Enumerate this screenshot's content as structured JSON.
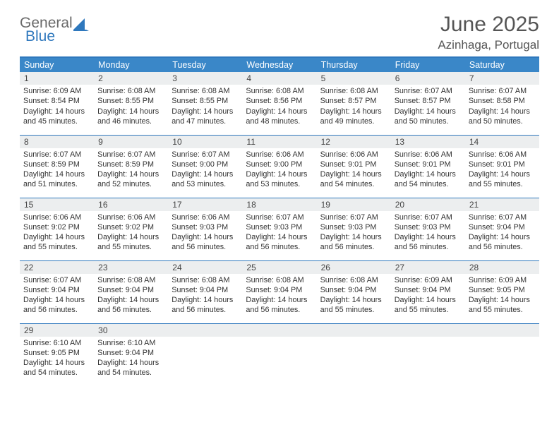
{
  "logo": {
    "text1": "General",
    "text2": "Blue",
    "sail_color": "#2f78bd",
    "text1_color": "#6a6a6a"
  },
  "title": {
    "month": "June 2025",
    "location": "Azinhaga, Portugal"
  },
  "colors": {
    "header_bg": "#3a87c8",
    "header_text": "#ffffff",
    "border": "#2f78bd",
    "daynum_bg": "#eceeef",
    "body_text": "#333333",
    "title_text": "#555555"
  },
  "weekdays": [
    "Sunday",
    "Monday",
    "Tuesday",
    "Wednesday",
    "Thursday",
    "Friday",
    "Saturday"
  ],
  "weeks": [
    [
      {
        "n": "1",
        "sr": "6:09 AM",
        "ss": "8:54 PM",
        "dl": "14 hours and 45 minutes."
      },
      {
        "n": "2",
        "sr": "6:08 AM",
        "ss": "8:55 PM",
        "dl": "14 hours and 46 minutes."
      },
      {
        "n": "3",
        "sr": "6:08 AM",
        "ss": "8:55 PM",
        "dl": "14 hours and 47 minutes."
      },
      {
        "n": "4",
        "sr": "6:08 AM",
        "ss": "8:56 PM",
        "dl": "14 hours and 48 minutes."
      },
      {
        "n": "5",
        "sr": "6:08 AM",
        "ss": "8:57 PM",
        "dl": "14 hours and 49 minutes."
      },
      {
        "n": "6",
        "sr": "6:07 AM",
        "ss": "8:57 PM",
        "dl": "14 hours and 50 minutes."
      },
      {
        "n": "7",
        "sr": "6:07 AM",
        "ss": "8:58 PM",
        "dl": "14 hours and 50 minutes."
      }
    ],
    [
      {
        "n": "8",
        "sr": "6:07 AM",
        "ss": "8:59 PM",
        "dl": "14 hours and 51 minutes."
      },
      {
        "n": "9",
        "sr": "6:07 AM",
        "ss": "8:59 PM",
        "dl": "14 hours and 52 minutes."
      },
      {
        "n": "10",
        "sr": "6:07 AM",
        "ss": "9:00 PM",
        "dl": "14 hours and 53 minutes."
      },
      {
        "n": "11",
        "sr": "6:06 AM",
        "ss": "9:00 PM",
        "dl": "14 hours and 53 minutes."
      },
      {
        "n": "12",
        "sr": "6:06 AM",
        "ss": "9:01 PM",
        "dl": "14 hours and 54 minutes."
      },
      {
        "n": "13",
        "sr": "6:06 AM",
        "ss": "9:01 PM",
        "dl": "14 hours and 54 minutes."
      },
      {
        "n": "14",
        "sr": "6:06 AM",
        "ss": "9:01 PM",
        "dl": "14 hours and 55 minutes."
      }
    ],
    [
      {
        "n": "15",
        "sr": "6:06 AM",
        "ss": "9:02 PM",
        "dl": "14 hours and 55 minutes."
      },
      {
        "n": "16",
        "sr": "6:06 AM",
        "ss": "9:02 PM",
        "dl": "14 hours and 55 minutes."
      },
      {
        "n": "17",
        "sr": "6:06 AM",
        "ss": "9:03 PM",
        "dl": "14 hours and 56 minutes."
      },
      {
        "n": "18",
        "sr": "6:07 AM",
        "ss": "9:03 PM",
        "dl": "14 hours and 56 minutes."
      },
      {
        "n": "19",
        "sr": "6:07 AM",
        "ss": "9:03 PM",
        "dl": "14 hours and 56 minutes."
      },
      {
        "n": "20",
        "sr": "6:07 AM",
        "ss": "9:03 PM",
        "dl": "14 hours and 56 minutes."
      },
      {
        "n": "21",
        "sr": "6:07 AM",
        "ss": "9:04 PM",
        "dl": "14 hours and 56 minutes."
      }
    ],
    [
      {
        "n": "22",
        "sr": "6:07 AM",
        "ss": "9:04 PM",
        "dl": "14 hours and 56 minutes."
      },
      {
        "n": "23",
        "sr": "6:08 AM",
        "ss": "9:04 PM",
        "dl": "14 hours and 56 minutes."
      },
      {
        "n": "24",
        "sr": "6:08 AM",
        "ss": "9:04 PM",
        "dl": "14 hours and 56 minutes."
      },
      {
        "n": "25",
        "sr": "6:08 AM",
        "ss": "9:04 PM",
        "dl": "14 hours and 56 minutes."
      },
      {
        "n": "26",
        "sr": "6:08 AM",
        "ss": "9:04 PM",
        "dl": "14 hours and 55 minutes."
      },
      {
        "n": "27",
        "sr": "6:09 AM",
        "ss": "9:04 PM",
        "dl": "14 hours and 55 minutes."
      },
      {
        "n": "28",
        "sr": "6:09 AM",
        "ss": "9:05 PM",
        "dl": "14 hours and 55 minutes."
      }
    ],
    [
      {
        "n": "29",
        "sr": "6:10 AM",
        "ss": "9:05 PM",
        "dl": "14 hours and 54 minutes."
      },
      {
        "n": "30",
        "sr": "6:10 AM",
        "ss": "9:04 PM",
        "dl": "14 hours and 54 minutes."
      },
      null,
      null,
      null,
      null,
      null
    ]
  ],
  "labels": {
    "sunrise": "Sunrise:",
    "sunset": "Sunset:",
    "daylight": "Daylight:"
  }
}
